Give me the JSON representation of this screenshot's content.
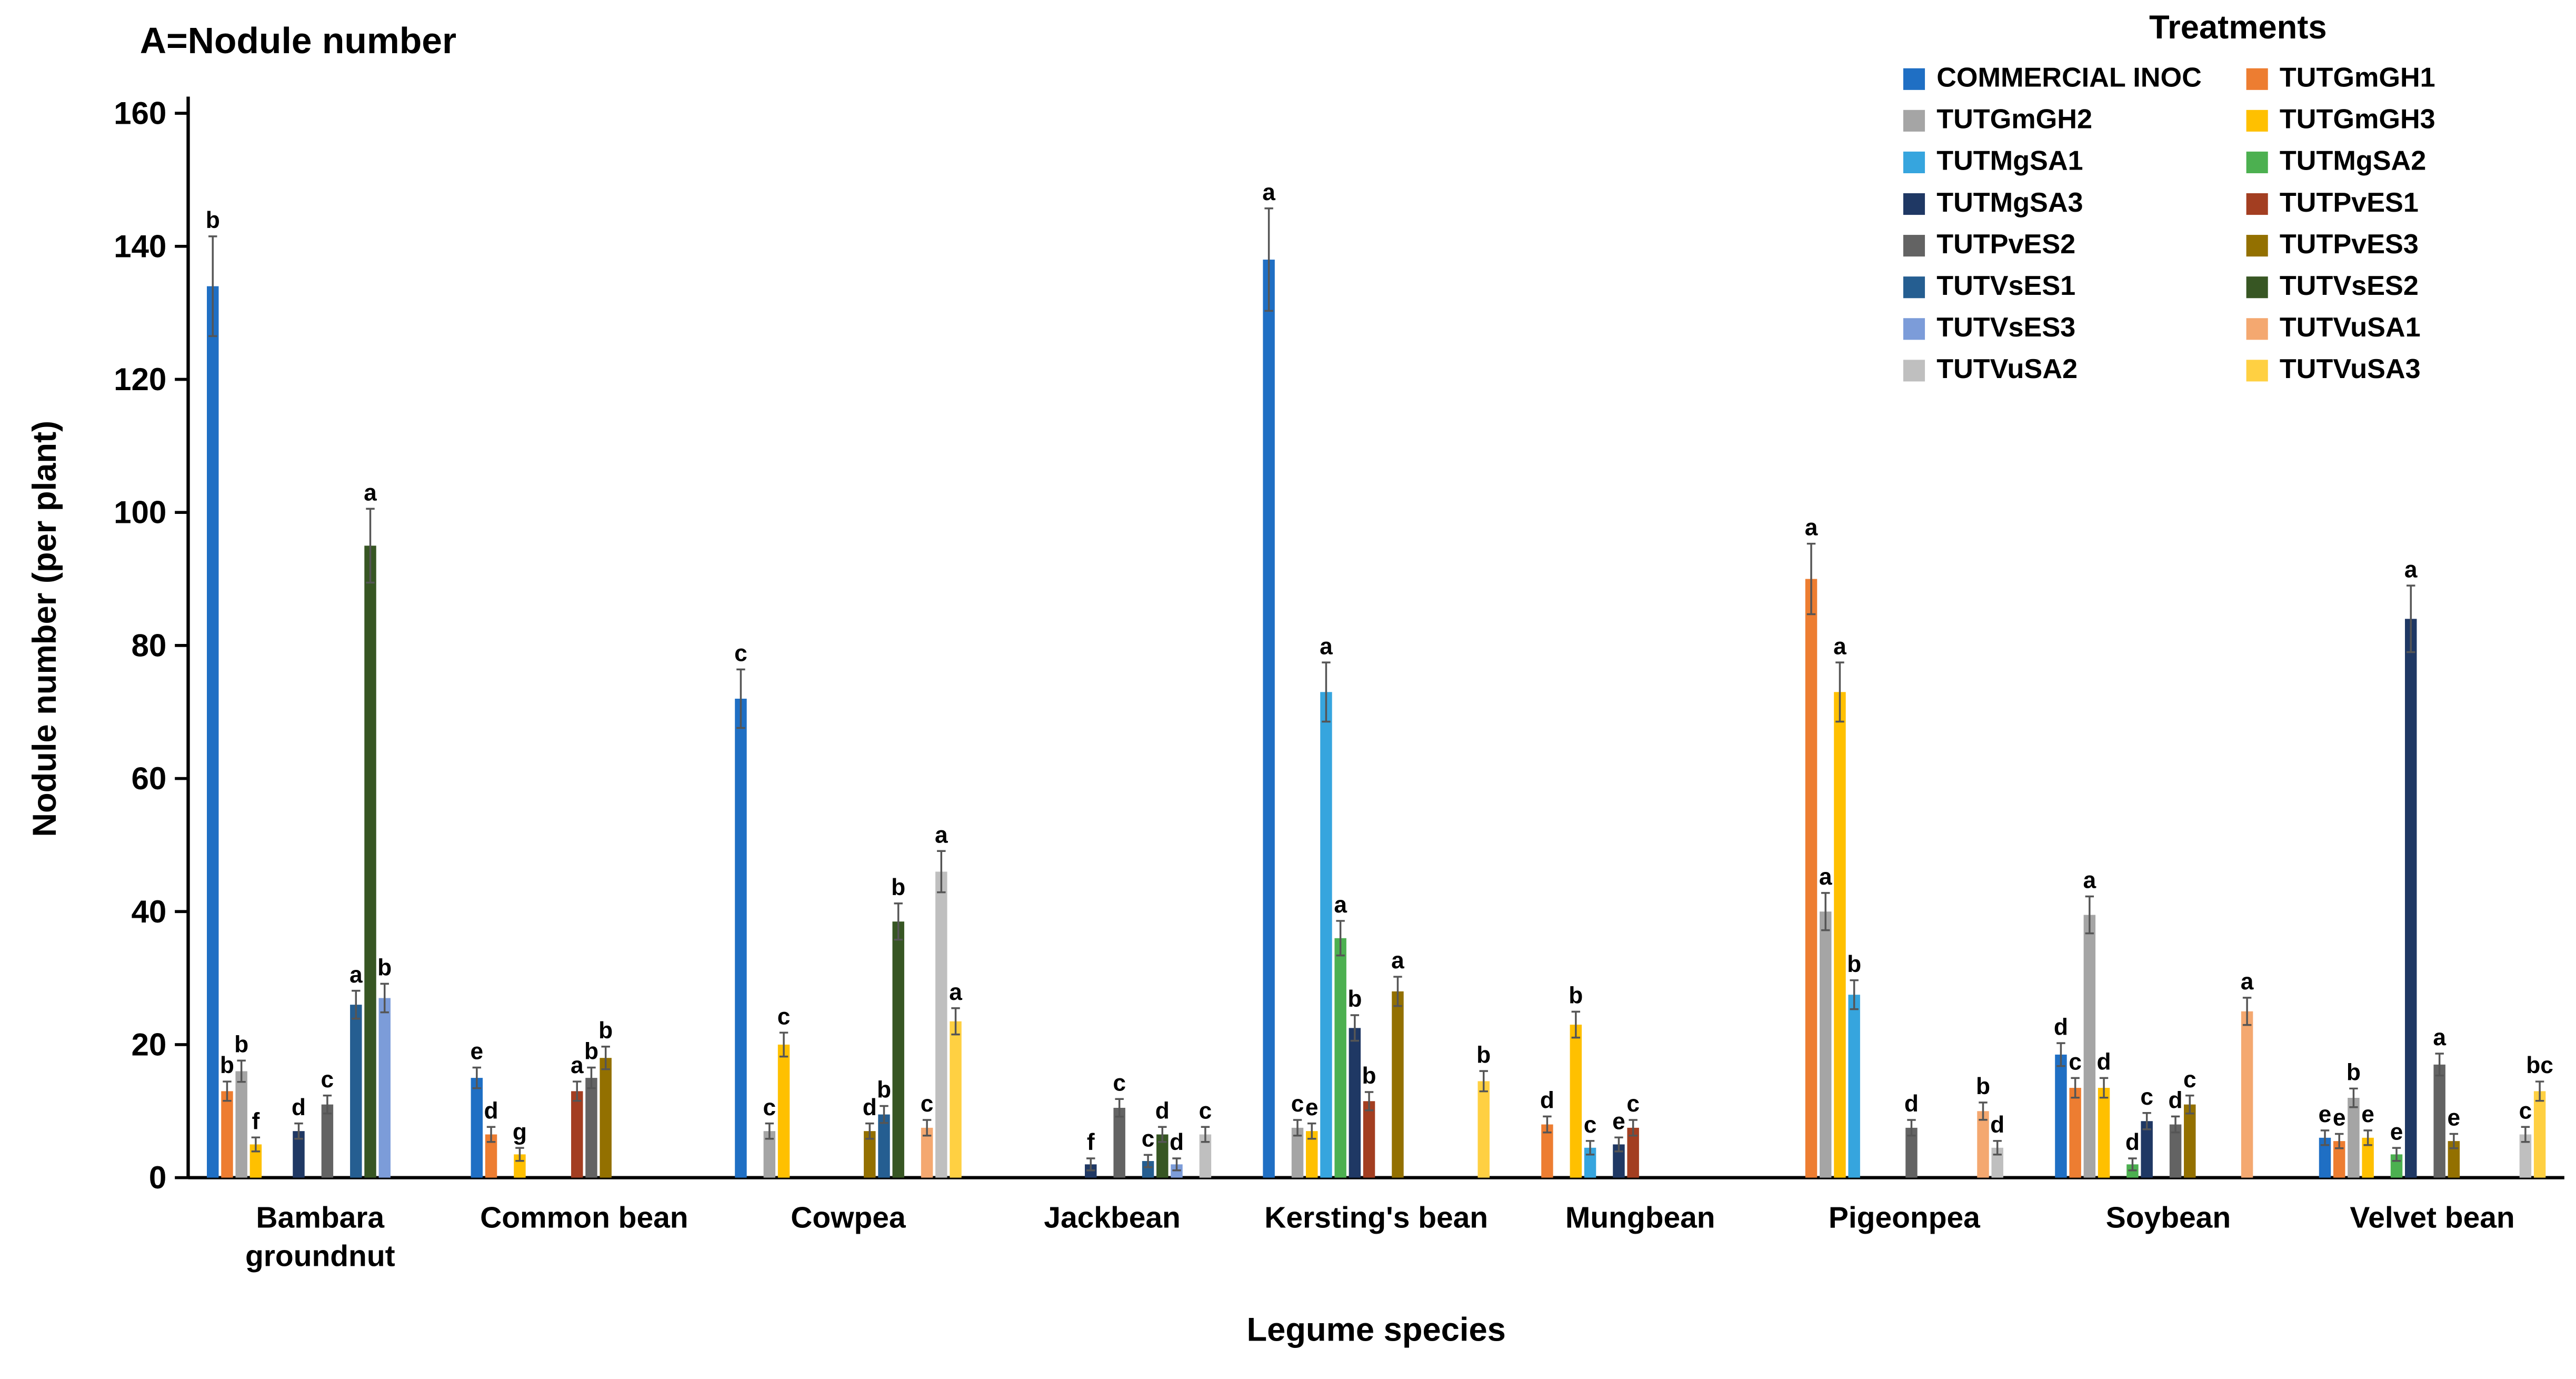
{
  "chart": {
    "panel_title": "A=Nodule number",
    "y_axis_title": "Nodule number (per plant)",
    "x_axis_title": "Legume species",
    "legend_title": "Treatments"
  },
  "chart_data": {
    "type": "bar",
    "title": "A=Nodule number",
    "xlabel": "Legume species",
    "ylabel": "Nodule number (per plant)",
    "ylim": [
      0,
      160
    ],
    "yticks": [
      0,
      20,
      40,
      60,
      80,
      100,
      120,
      140,
      160
    ],
    "grid": false,
    "legend_title": "Treatments",
    "legend_position": "top-right",
    "legend_columns": 2,
    "error_bars": "standard-error whiskers on every bar (values estimated from figure)",
    "annotation_note": "letters above bars denote statistical significance groupings",
    "categories": [
      {
        "name": "Bambara groundnut",
        "lines": [
          "Bambara",
          "groundnut"
        ]
      },
      {
        "name": "Common bean",
        "lines": [
          "Common bean"
        ]
      },
      {
        "name": "Cowpea",
        "lines": [
          "Cowpea"
        ]
      },
      {
        "name": "Jackbean",
        "lines": [
          "Jackbean"
        ]
      },
      {
        "name": "Kersting's bean",
        "lines": [
          "Kersting's bean"
        ]
      },
      {
        "name": "Mungbean",
        "lines": [
          "Mungbean"
        ]
      },
      {
        "name": "Pigeonpea",
        "lines": [
          "Pigeonpea"
        ]
      },
      {
        "name": "Soybean",
        "lines": [
          "Soybean"
        ]
      },
      {
        "name": "Velvet bean",
        "lines": [
          "Velvet bean"
        ]
      }
    ],
    "series": [
      {
        "name": "COMMERCIAL INOC",
        "color": "#1F6FC4",
        "values": [
          134,
          15,
          72,
          null,
          138,
          null,
          null,
          18.5,
          6
        ],
        "letters": [
          "b",
          "e",
          "c",
          "",
          "a",
          "",
          "",
          "d",
          "e"
        ]
      },
      {
        "name": "TUTGmGH1",
        "color": "#ED7D31",
        "values": [
          13,
          6.5,
          null,
          null,
          null,
          8,
          90,
          13.5,
          5.5
        ],
        "letters": [
          "b",
          "d",
          "",
          "",
          "",
          "d",
          "a",
          "c",
          "e"
        ]
      },
      {
        "name": "TUTGmGH2",
        "color": "#A5A5A5",
        "values": [
          16,
          null,
          7,
          null,
          7.5,
          null,
          40,
          39.5,
          12
        ],
        "letters": [
          "b",
          "",
          "c",
          "",
          "c",
          "",
          "a",
          "a",
          "b"
        ]
      },
      {
        "name": "TUTGmGH3",
        "color": "#FFC000",
        "values": [
          5,
          3.5,
          20,
          null,
          7,
          23,
          73,
          13.5,
          6
        ],
        "letters": [
          "f",
          "g",
          "c",
          "",
          "e",
          "b",
          "a",
          "d",
          "e"
        ]
      },
      {
        "name": "TUTMgSA1",
        "color": "#36A5DE",
        "values": [
          null,
          null,
          null,
          null,
          73,
          4.5,
          27.5,
          null,
          null
        ],
        "letters": [
          "",
          "",
          "",
          "",
          "a",
          "c",
          "b",
          "",
          ""
        ]
      },
      {
        "name": "TUTMgSA2",
        "color": "#4CB050",
        "values": [
          null,
          null,
          null,
          null,
          36,
          null,
          null,
          2,
          3.5
        ],
        "letters": [
          "",
          "",
          "",
          "",
          "a",
          "",
          "",
          "d",
          "e"
        ]
      },
      {
        "name": "TUTMgSA3",
        "color": "#1F3864",
        "values": [
          7,
          null,
          null,
          2,
          22.5,
          5,
          null,
          8.5,
          84
        ],
        "letters": [
          "d",
          "",
          "",
          "f",
          "b",
          "e",
          "",
          "c",
          "a"
        ]
      },
      {
        "name": "TUTPvES1",
        "color": "#A33E21",
        "values": [
          null,
          13,
          null,
          null,
          11.5,
          7.5,
          null,
          null,
          null
        ],
        "letters": [
          "",
          "a",
          "",
          "",
          "b",
          "c",
          "",
          "",
          ""
        ]
      },
      {
        "name": "TUTPvES2",
        "color": "#636363",
        "values": [
          11,
          15,
          null,
          10.5,
          null,
          null,
          7.5,
          8,
          17
        ],
        "letters": [
          "c",
          "b",
          "",
          "c",
          "",
          "",
          "d",
          "d",
          "a"
        ]
      },
      {
        "name": "TUTPvES3",
        "color": "#937000",
        "values": [
          null,
          18,
          7,
          null,
          28,
          null,
          null,
          11,
          5.5
        ],
        "letters": [
          "",
          "b",
          "d",
          "",
          "a",
          "",
          "",
          "c",
          "e"
        ]
      },
      {
        "name": "TUTVsES1",
        "color": "#255E91",
        "values": [
          26,
          null,
          9.5,
          2.5,
          null,
          null,
          null,
          null,
          null
        ],
        "letters": [
          "a",
          "",
          "b",
          "c",
          "",
          "",
          "",
          "",
          ""
        ]
      },
      {
        "name": "TUTVsES2",
        "color": "#375623",
        "values": [
          95,
          null,
          38.5,
          6.5,
          null,
          null,
          null,
          null,
          null
        ],
        "letters": [
          "a",
          "",
          "b",
          "d",
          "",
          "",
          "",
          "",
          ""
        ]
      },
      {
        "name": "TUTVsES3",
        "color": "#7C9CD9",
        "values": [
          27,
          null,
          null,
          2,
          null,
          null,
          null,
          null,
          null
        ],
        "letters": [
          "b",
          "",
          "",
          "d",
          "",
          "",
          "",
          "",
          ""
        ]
      },
      {
        "name": "TUTVuSA1",
        "color": "#F4A870",
        "values": [
          null,
          null,
          7.5,
          null,
          null,
          null,
          10,
          25,
          null
        ],
        "letters": [
          "",
          "",
          "c",
          "",
          "",
          "",
          "b",
          "a",
          ""
        ]
      },
      {
        "name": "TUTVuSA2",
        "color": "#BFBFBF",
        "values": [
          null,
          null,
          46,
          6.5,
          null,
          null,
          4.5,
          null,
          6.5
        ],
        "letters": [
          "",
          "",
          "a",
          "c",
          "",
          "",
          "d",
          "",
          "c"
        ]
      },
      {
        "name": "TUTVuSA3",
        "color": "#FFD042",
        "values": [
          null,
          null,
          23.5,
          null,
          14.5,
          null,
          null,
          null,
          13
        ],
        "letters": [
          "",
          "",
          "a",
          "",
          "b",
          "",
          "",
          "",
          "bc"
        ]
      }
    ]
  }
}
